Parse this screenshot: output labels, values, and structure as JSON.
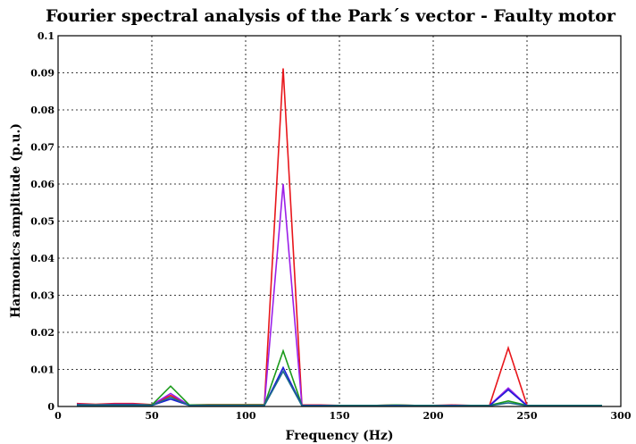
{
  "chart_data": {
    "type": "line",
    "title": "Fourier spectral analysis of the Park´s vector - Faulty motor",
    "xlabel": "Frequency (Hz)",
    "ylabel": "Harmonics amplitude (p.u.)",
    "xlim": [
      0,
      300
    ],
    "ylim": [
      0,
      0.1
    ],
    "xticks": [
      0,
      50,
      100,
      150,
      200,
      250,
      300
    ],
    "yticks": [
      0,
      0.01,
      0.02,
      0.03,
      0.04,
      0.05,
      0.06,
      0.07,
      0.08,
      0.09,
      0.1
    ],
    "xtick_labels": [
      "0",
      "50",
      "100",
      "150",
      "200",
      "250",
      "300"
    ],
    "ytick_labels": [
      "0",
      "0.01",
      "0.02",
      "0.03",
      "0.04",
      "0.05",
      "0.06",
      "0.07",
      "0.08",
      "0.09",
      "0.1"
    ],
    "grid": true,
    "x": [
      10,
      20,
      30,
      40,
      50,
      60,
      70,
      80,
      90,
      100,
      110,
      120,
      130,
      140,
      150,
      160,
      170,
      180,
      190,
      200,
      210,
      220,
      230,
      240,
      250,
      260,
      270,
      280,
      290
    ],
    "series": [
      {
        "color": "#e8161b",
        "values": [
          0.0008,
          0.0006,
          0.0008,
          0.0008,
          0.0005,
          0.003,
          0.0004,
          0.0005,
          0.0005,
          0.0005,
          0.0005,
          0.0912,
          0.0004,
          0.0004,
          0.0003,
          0.0003,
          0.0003,
          0.0004,
          0.0003,
          0.0003,
          0.0004,
          0.0003,
          0.0003,
          0.0158,
          0.0003,
          0.0003,
          0.0003,
          0.0003,
          0.0003
        ]
      },
      {
        "color": "#9b1fe8",
        "values": [
          0.0006,
          0.0005,
          0.0006,
          0.0006,
          0.0004,
          0.0035,
          0.0003,
          0.0004,
          0.0004,
          0.0004,
          0.0004,
          0.06,
          0.0003,
          0.0003,
          0.0003,
          0.0003,
          0.0003,
          0.0003,
          0.0003,
          0.0003,
          0.0003,
          0.0003,
          0.0003,
          0.005,
          0.0003,
          0.0003,
          0.0003,
          0.0003,
          0.0003
        ]
      },
      {
        "color": "#1a9a1a",
        "values": [
          0.0005,
          0.0004,
          0.0005,
          0.0005,
          0.0004,
          0.0055,
          0.0004,
          0.0004,
          0.0004,
          0.0004,
          0.0004,
          0.015,
          0.0003,
          0.0003,
          0.0003,
          0.0003,
          0.0003,
          0.0004,
          0.0003,
          0.0003,
          0.0003,
          0.0003,
          0.0003,
          0.0015,
          0.0003,
          0.0003,
          0.0003,
          0.0003,
          0.0003
        ]
      },
      {
        "color": "#1d1dd6",
        "values": [
          0.0004,
          0.0003,
          0.0004,
          0.0004,
          0.0003,
          0.002,
          0.0003,
          0.0003,
          0.0003,
          0.0003,
          0.0003,
          0.0105,
          0.0003,
          0.0003,
          0.0002,
          0.0002,
          0.0002,
          0.0003,
          0.0002,
          0.0002,
          0.0003,
          0.0002,
          0.0002,
          0.0045,
          0.0002,
          0.0002,
          0.0002,
          0.0002,
          0.0002
        ]
      },
      {
        "color": "#1a6b8a",
        "values": [
          0.0003,
          0.0003,
          0.0003,
          0.0003,
          0.0003,
          0.0025,
          0.0003,
          0.0003,
          0.0003,
          0.0003,
          0.0003,
          0.0095,
          0.0002,
          0.0002,
          0.0002,
          0.0002,
          0.0002,
          0.0002,
          0.0002,
          0.0002,
          0.0002,
          0.0002,
          0.0002,
          0.001,
          0.0002,
          0.0002,
          0.0002,
          0.0002,
          0.0002
        ]
      }
    ]
  }
}
